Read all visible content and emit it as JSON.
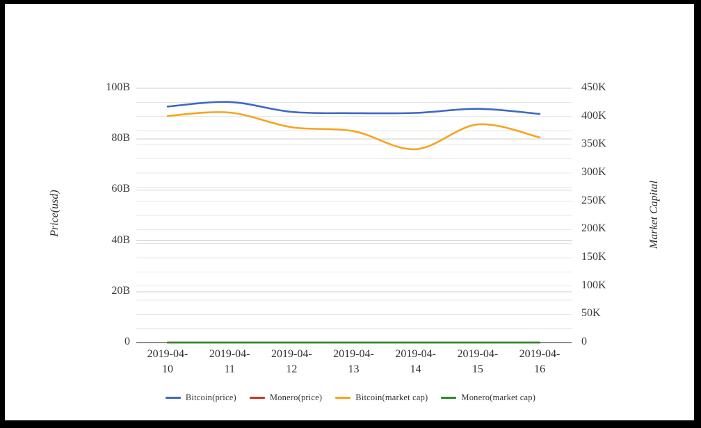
{
  "frame": {
    "border_color": "#000000",
    "background": "#ffffff"
  },
  "chart_data": {
    "type": "line",
    "x": [
      "2019-04-10",
      "2019-04-11",
      "2019-04-12",
      "2019-04-13",
      "2019-04-14",
      "2019-04-15",
      "2019-04-16"
    ],
    "left_axis": {
      "label": "Price(usd)",
      "min": 0,
      "max": 100,
      "unit": "B",
      "tick_step": 20,
      "tick_labels": [
        "0",
        "20B",
        "40B",
        "60B",
        "80B",
        "100B"
      ]
    },
    "right_axis": {
      "label": "Market Capital",
      "min": 0,
      "max": 450,
      "unit": "K",
      "tick_step": 50,
      "minor_step": 25,
      "tick_labels": [
        "0",
        "50K",
        "100K",
        "150K",
        "200K",
        "250K",
        "300K",
        "350K",
        "400K",
        "450K"
      ]
    },
    "series": [
      {
        "name": "Bitcoin(price)",
        "axis": "left",
        "color": "#3e68c5",
        "values": [
          92.8,
          94.6,
          90.7,
          90.2,
          90.3,
          91.9,
          89.9
        ]
      },
      {
        "name": "Monero(price)",
        "axis": "left",
        "color": "#c0392b",
        "values": [
          0,
          0,
          0,
          0,
          0,
          0,
          0
        ]
      },
      {
        "name": "Bitcoin(market cap)",
        "axis": "right",
        "color": "#f7a41c",
        "values": [
          401,
          407,
          381,
          374,
          342,
          386,
          363
        ]
      },
      {
        "name": "Monero(market cap)",
        "axis": "right",
        "color": "#2d8a2d",
        "values": [
          0,
          0,
          0,
          0,
          0,
          0,
          0
        ]
      }
    ],
    "legend_position": "bottom",
    "grid": true,
    "title": ""
  }
}
